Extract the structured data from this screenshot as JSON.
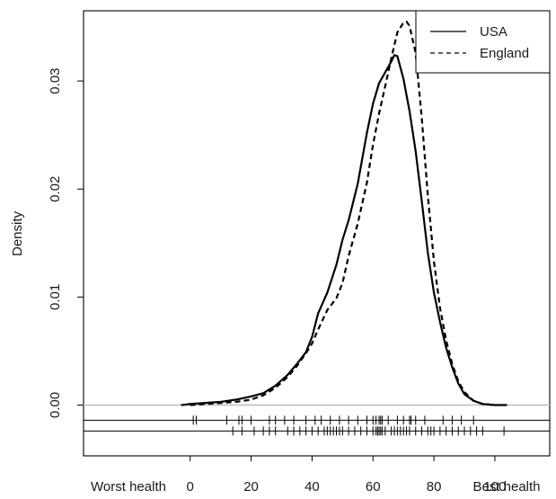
{
  "chart_data": {
    "type": "line",
    "title": "",
    "xlabel": "",
    "ylabel": "Density",
    "xlim": [
      -35,
      118
    ],
    "ylim": [
      -0.0047,
      0.0365
    ],
    "x_ticks": [
      0,
      20,
      40,
      60,
      80,
      100
    ],
    "x_tick_labels": [
      "0",
      "20",
      "40",
      "60",
      "80",
      "100"
    ],
    "y_ticks": [
      0.0,
      0.01,
      0.02,
      0.03
    ],
    "y_tick_labels": [
      "0.00",
      "0.01",
      "0.02",
      "0.03"
    ],
    "x_end_labels": {
      "left": "Worst health",
      "right": "Best health"
    },
    "grid": false,
    "legend_position": "top-right",
    "zero_line": 0,
    "series": [
      {
        "name": "USA",
        "line_style": "solid",
        "color": "#000000",
        "x": [
          -3,
          0,
          5,
          10,
          15,
          20,
          24,
          28,
          32,
          35,
          38,
          40,
          42,
          45,
          48,
          50,
          52,
          55,
          58,
          60,
          62,
          64,
          66,
          67,
          68,
          70,
          72,
          74,
          76,
          78,
          80,
          82,
          84,
          86,
          88,
          90,
          93,
          96,
          100,
          104
        ],
        "y": [
          0.0,
          0.0001,
          0.0002,
          0.0003,
          0.0005,
          0.0008,
          0.0011,
          0.0018,
          0.0028,
          0.0038,
          0.0049,
          0.0063,
          0.0085,
          0.0104,
          0.013,
          0.0153,
          0.0171,
          0.0205,
          0.0252,
          0.0279,
          0.0298,
          0.0308,
          0.0318,
          0.0324,
          0.0323,
          0.0302,
          0.0272,
          0.0235,
          0.0189,
          0.0141,
          0.0104,
          0.0077,
          0.0053,
          0.0035,
          0.002,
          0.001,
          0.0004,
          0.0001,
          0.0,
          0.0
        ]
      },
      {
        "name": "England",
        "line_style": "dashed",
        "color": "#000000",
        "x": [
          0,
          5,
          10,
          15,
          20,
          24,
          28,
          32,
          35,
          38,
          40,
          42,
          45,
          48,
          50,
          52,
          55,
          58,
          60,
          62,
          64,
          66,
          68,
          70,
          71,
          72,
          74,
          76,
          78,
          80,
          82,
          84,
          86,
          88,
          90,
          93,
          96,
          100
        ],
        "y": [
          0.0,
          0.0001,
          0.0002,
          0.0003,
          0.0005,
          0.0009,
          0.0016,
          0.0026,
          0.0036,
          0.0048,
          0.0057,
          0.007,
          0.0088,
          0.0099,
          0.0113,
          0.0138,
          0.0168,
          0.0206,
          0.0241,
          0.027,
          0.0295,
          0.0321,
          0.0345,
          0.0354,
          0.0355,
          0.0351,
          0.0326,
          0.0266,
          0.0194,
          0.0133,
          0.009,
          0.006,
          0.0038,
          0.0022,
          0.0012,
          0.0004,
          0.0001,
          0.0
        ]
      }
    ],
    "rugs": [
      {
        "series": "USA",
        "y_level": -0.0014,
        "values": [
          1,
          2,
          12,
          16,
          17,
          20,
          26,
          28,
          31,
          34,
          38,
          41,
          43,
          46,
          49,
          52,
          55,
          58,
          60,
          61,
          62,
          62.5,
          63,
          65,
          68,
          70,
          72,
          72.5,
          74,
          77,
          83,
          86,
          89,
          93
        ]
      },
      {
        "series": "England",
        "y_level": -0.0024,
        "values": [
          14,
          17,
          21,
          24,
          26,
          28,
          32,
          34,
          36,
          38,
          40,
          42,
          44,
          45,
          46,
          47,
          48,
          49,
          50,
          52,
          54,
          56,
          58,
          60,
          61,
          61.5,
          62,
          62.5,
          63,
          64,
          66,
          67,
          68,
          69,
          70,
          71,
          72,
          74,
          76,
          78,
          79,
          80,
          82,
          84,
          86,
          88,
          90,
          92,
          94,
          96,
          103
        ]
      }
    ]
  }
}
